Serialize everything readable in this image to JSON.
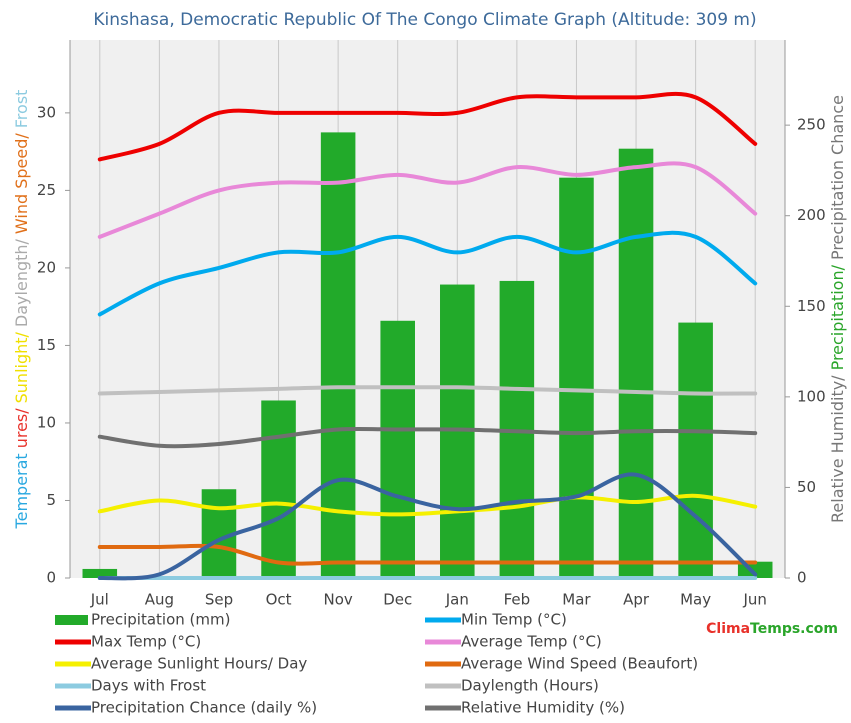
{
  "chart_data": {
    "type": "combo",
    "title": "Kinshasa, Democratic Republic Of The Congo Climate Graph (Altitude: 309 m)",
    "y_label_parts": [
      {
        "text": "Temperat",
        "color": "#29a8e0"
      },
      {
        "text": "ures/",
        "color": "#e8312a"
      },
      {
        "text": "Sunlight/",
        "color": "#f0e000"
      },
      {
        "text": "Daylength/",
        "color": "#aaaaaa"
      },
      {
        "text": "Wind Speed/",
        "color": "#e0701a"
      },
      {
        "text": "Frost",
        "color": "#8ccbe0"
      }
    ],
    "y2_label_parts": [
      {
        "text": "Relative Humidity/",
        "color": "#777777"
      },
      {
        "text": "Precipitation/",
        "color": "#2aa52a"
      },
      {
        "text": "Precipitation Chance",
        "color": "#777777"
      }
    ],
    "watermark_parts": [
      {
        "text": "Clima",
        "color": "#e8312a"
      },
      {
        "text": "Temps.com",
        "color": "#2aa52a"
      }
    ],
    "categories": [
      "Jul",
      "Aug",
      "Sep",
      "Oct",
      "Nov",
      "Dec",
      "Jan",
      "Feb",
      "Mar",
      "Apr",
      "May",
      "Jun"
    ],
    "ylim": [
      0,
      34.7
    ],
    "yticks": [
      0,
      5,
      10,
      15,
      20,
      25,
      30
    ],
    "y2lim": [
      0,
      297
    ],
    "y2ticks": [
      0,
      50,
      100,
      150,
      200,
      250
    ],
    "grid": "x",
    "series": [
      {
        "name": "Precipitation (mm)",
        "type": "bar",
        "axis": "y2",
        "color": "#22aa2a",
        "values": [
          5,
          1,
          49,
          98,
          246,
          142,
          162,
          164,
          221,
          237,
          141,
          9
        ]
      },
      {
        "name": "Min Temp (°C)",
        "type": "line",
        "color": "#00aaee",
        "values": [
          17,
          19,
          20,
          21,
          21,
          22,
          21,
          22,
          21,
          22,
          22,
          19
        ]
      },
      {
        "name": "Max Temp (°C)",
        "type": "line",
        "color": "#ee0000",
        "values": [
          27,
          28,
          30,
          30,
          30,
          30,
          30,
          31,
          31,
          31,
          31,
          28
        ]
      },
      {
        "name": "Average Temp (°C)",
        "type": "line",
        "color": "#e888d8",
        "values": [
          22,
          23.5,
          25,
          25.5,
          25.5,
          26,
          25.5,
          26.5,
          26,
          26.5,
          26.5,
          23.5
        ]
      },
      {
        "name": "Average Sunlight Hours/ Day",
        "type": "line",
        "color": "#f5f000",
        "values": [
          4.3,
          5,
          4.5,
          4.8,
          4.3,
          4.1,
          4.3,
          4.6,
          5.2,
          4.9,
          5.3,
          4.6
        ]
      },
      {
        "name": "Average Wind Speed (Beaufort)",
        "type": "line",
        "color": "#e06a10",
        "values": [
          2,
          2,
          2,
          1,
          1,
          1,
          1,
          1,
          1,
          1,
          1,
          1
        ]
      },
      {
        "name": "Days with Frost",
        "type": "line",
        "color": "#8ccbe0",
        "values": [
          0,
          0,
          0,
          0,
          0,
          0,
          0,
          0,
          0,
          0,
          0,
          0
        ]
      },
      {
        "name": "Daylength (Hours)",
        "type": "line",
        "color": "#c0c0c0",
        "values": [
          11.9,
          12,
          12.1,
          12.2,
          12.3,
          12.3,
          12.3,
          12.2,
          12.1,
          12,
          11.9,
          11.9
        ]
      },
      {
        "name": "Precipitation Chance (daily %)",
        "type": "line",
        "axis": "y2",
        "color": "#3a64a0",
        "values": [
          0,
          2,
          21,
          33,
          54,
          45,
          38,
          42,
          45,
          57,
          34,
          2
        ]
      },
      {
        "name": "Relative Humidity (%)",
        "type": "line",
        "axis": "y2",
        "color": "#707070",
        "values": [
          78,
          73,
          74,
          78,
          82,
          82,
          82,
          81,
          80,
          81,
          81,
          80
        ]
      }
    ]
  }
}
